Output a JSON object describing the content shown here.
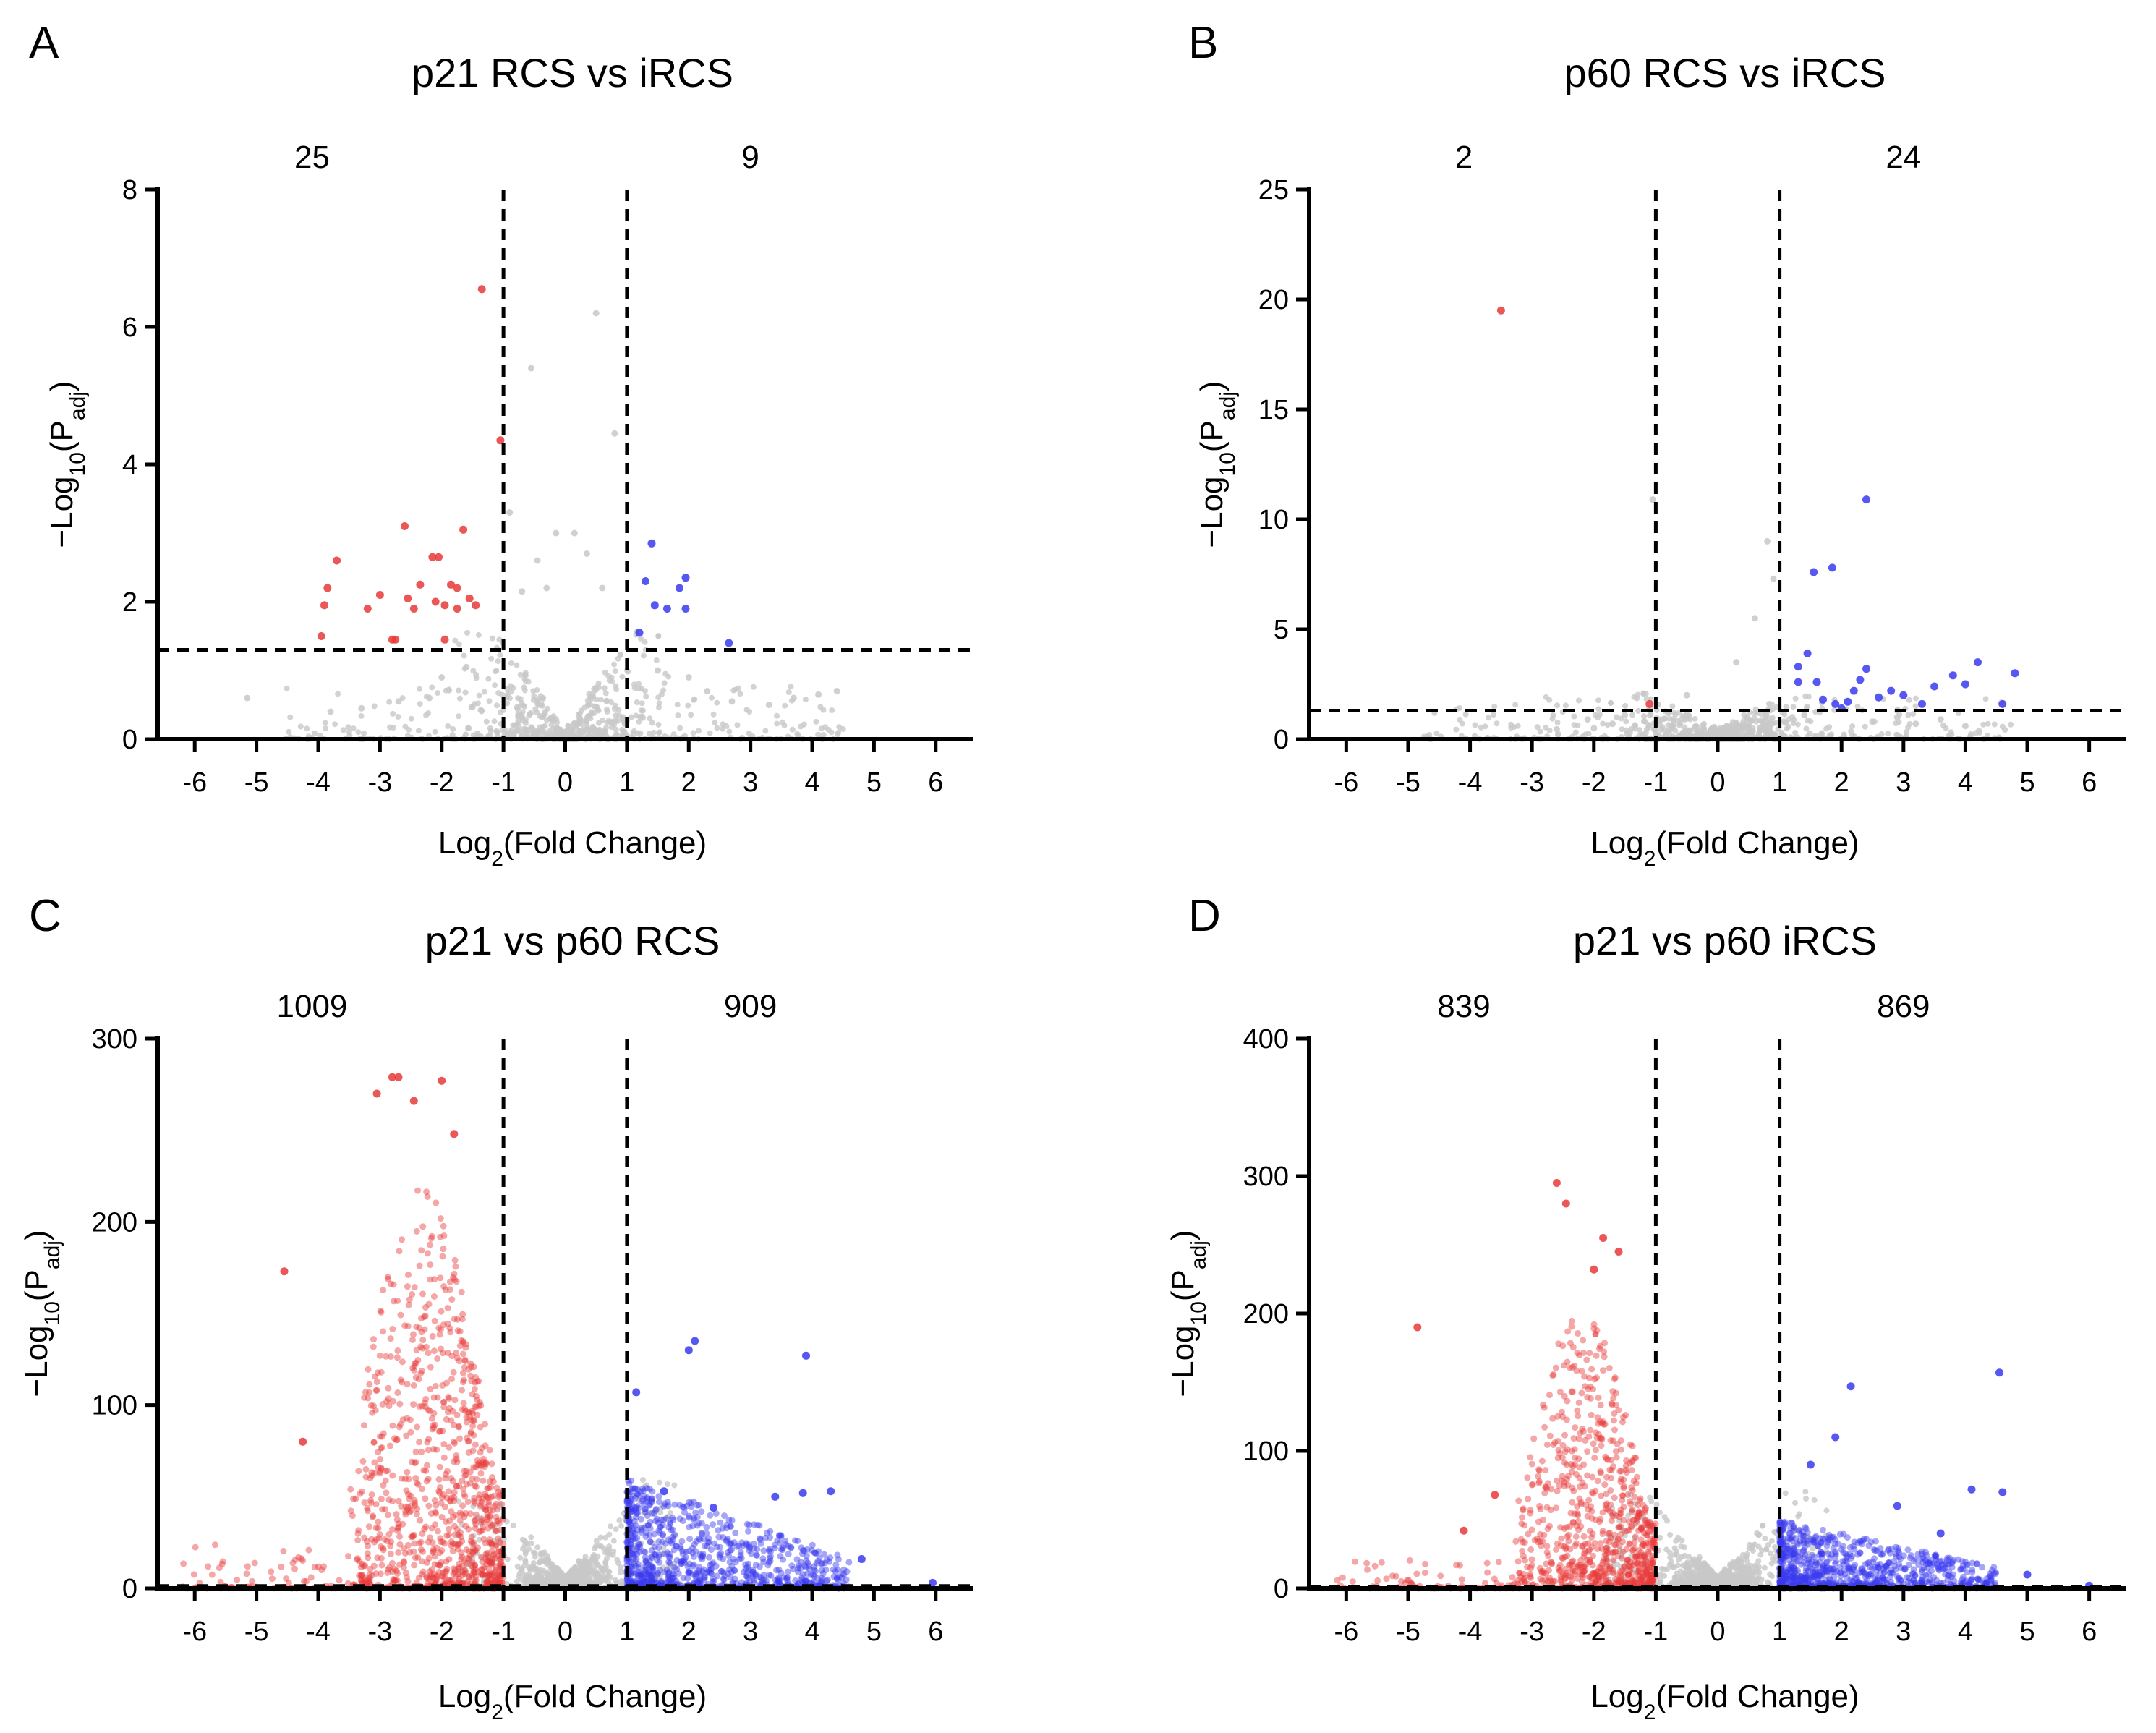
{
  "colors": {
    "up": "#e83a3a",
    "down": "#3a3af0",
    "ns": "#c8c8c8",
    "axis": "#000000"
  },
  "chart_data": [
    {
      "id": "A",
      "type": "scatter",
      "panel_label": "A",
      "title": "p21 RCS vs iRCS",
      "xlabel_main": "Log",
      "xlabel_sub": "2",
      "xlabel_rest": "(Fold  Change)",
      "ylabel_main": "−Log",
      "ylabel_sub1": "10",
      "ylabel_mid": "(P",
      "ylabel_sub2": "adj",
      "ylabel_end": ")",
      "xlim": [
        -6.6,
        6.6
      ],
      "ylim": [
        0,
        8
      ],
      "xticks": [
        -6,
        -5,
        -4,
        -3,
        -2,
        -1,
        0,
        1,
        2,
        3,
        4,
        5,
        6
      ],
      "xtick_labels": [
        "-6",
        "-5",
        "-4",
        "-3",
        "-2",
        "-1",
        "0",
        "1",
        "2",
        "3",
        "4",
        "5",
        "6"
      ],
      "yticks": [
        0,
        2,
        4,
        6,
        8
      ],
      "ytick_labels": [
        "0",
        "2",
        "4",
        "6",
        "8"
      ],
      "fc_threshold": [
        -1,
        1
      ],
      "p_threshold": 1.3,
      "left_count": "25",
      "right_count": "9",
      "highlighted_up": [
        [
          -1.35,
          6.55
        ],
        [
          -1.05,
          4.35
        ],
        [
          -3.7,
          2.6
        ],
        [
          -3.85,
          2.2
        ],
        [
          -3.9,
          1.95
        ],
        [
          -3.2,
          1.9
        ],
        [
          -3.0,
          2.1
        ],
        [
          -2.6,
          3.1
        ],
        [
          -2.55,
          2.05
        ],
        [
          -2.35,
          2.25
        ],
        [
          -2.15,
          2.65
        ],
        [
          -2.05,
          2.65
        ],
        [
          -2.1,
          2.0
        ],
        [
          -1.95,
          1.95
        ],
        [
          -1.85,
          2.25
        ],
        [
          -1.75,
          2.2
        ],
        [
          -1.65,
          3.05
        ],
        [
          -1.55,
          2.05
        ],
        [
          -1.45,
          1.95
        ],
        [
          -1.75,
          1.9
        ],
        [
          -2.45,
          1.9
        ],
        [
          -2.8,
          1.45
        ],
        [
          -2.75,
          1.45
        ],
        [
          -1.95,
          1.45
        ],
        [
          -3.95,
          1.5
        ]
      ],
      "highlighted_down": [
        [
          1.4,
          2.85
        ],
        [
          1.45,
          1.95
        ],
        [
          1.65,
          1.9
        ],
        [
          1.85,
          2.2
        ],
        [
          1.95,
          2.35
        ],
        [
          1.95,
          1.9
        ],
        [
          1.3,
          2.3
        ],
        [
          1.2,
          1.55
        ],
        [
          2.65,
          1.4
        ]
      ],
      "ns_points": [
        [
          0.5,
          6.2
        ],
        [
          -0.55,
          5.4
        ],
        [
          0.8,
          4.45
        ],
        [
          -0.9,
          3.3
        ],
        [
          -0.15,
          3.0
        ],
        [
          0.15,
          3.0
        ],
        [
          0.35,
          2.7
        ],
        [
          -0.45,
          2.6
        ],
        [
          0.6,
          2.2
        ],
        [
          -0.7,
          2.15
        ],
        [
          -0.3,
          2.2
        ],
        [
          -5.15,
          0.6
        ],
        [
          4.4,
          0.7
        ],
        [
          4.1,
          0.65
        ],
        [
          3.7,
          0.6
        ],
        [
          3.3,
          0.5
        ],
        [
          -3.8,
          0.4
        ],
        [
          -3.3,
          0.45
        ],
        [
          -2.7,
          0.55
        ],
        [
          -2.2,
          0.6
        ],
        [
          2.3,
          0.7
        ],
        [
          2.7,
          0.55
        ],
        [
          -1.6,
          1.05
        ],
        [
          1.5,
          1.0
        ],
        [
          2.0,
          0.9
        ],
        [
          -2.0,
          0.9
        ]
      ],
      "ns_cloud": {
        "spread": 2.4,
        "height": 1.4,
        "count": 700,
        "tail_height": 2.2
      }
    },
    {
      "id": "B",
      "type": "scatter",
      "panel_label": "B",
      "title": "p60 RCS vs iRCS",
      "xlabel_main": "Log",
      "xlabel_sub": "2",
      "xlabel_rest": "(Fold  Change)",
      "ylabel_main": "−Log",
      "ylabel_sub1": "10",
      "ylabel_mid": "(P",
      "ylabel_sub2": "adj",
      "ylabel_end": ")",
      "xlim": [
        -6.6,
        6.6
      ],
      "ylim": [
        0,
        25
      ],
      "xticks": [
        -6,
        -5,
        -4,
        -3,
        -2,
        -1,
        0,
        1,
        2,
        3,
        4,
        5,
        6
      ],
      "xtick_labels": [
        "-6",
        "-5",
        "-4",
        "-3",
        "-2",
        "-1",
        "0",
        "1",
        "2",
        "3",
        "4",
        "5",
        "6"
      ],
      "yticks": [
        0,
        5,
        10,
        15,
        20,
        25
      ],
      "ytick_labels": [
        "0",
        "5",
        "10",
        "15",
        "20",
        "25"
      ],
      "fc_threshold": [
        -1,
        1
      ],
      "p_threshold": 1.3,
      "left_count": "2",
      "right_count": "24",
      "highlighted_up": [
        [
          -3.5,
          19.5
        ],
        [
          -1.1,
          1.6
        ]
      ],
      "highlighted_down": [
        [
          2.4,
          10.9
        ],
        [
          1.55,
          7.6
        ],
        [
          1.85,
          7.8
        ],
        [
          1.3,
          3.3
        ],
        [
          1.45,
          3.9
        ],
        [
          1.3,
          2.6
        ],
        [
          1.6,
          2.6
        ],
        [
          1.7,
          1.8
        ],
        [
          1.9,
          1.6
        ],
        [
          2.0,
          1.4
        ],
        [
          2.1,
          1.7
        ],
        [
          2.2,
          2.2
        ],
        [
          2.3,
          2.7
        ],
        [
          2.4,
          3.2
        ],
        [
          2.6,
          1.9
        ],
        [
          2.8,
          2.2
        ],
        [
          3.0,
          2.0
        ],
        [
          3.3,
          1.6
        ],
        [
          3.5,
          2.4
        ],
        [
          3.8,
          2.9
        ],
        [
          4.0,
          2.5
        ],
        [
          4.2,
          3.5
        ],
        [
          4.8,
          3.0
        ],
        [
          4.6,
          1.6
        ]
      ],
      "ns_points": [
        [
          0.8,
          9.0
        ],
        [
          0.9,
          7.3
        ],
        [
          -1.05,
          10.9
        ],
        [
          0.6,
          5.5
        ],
        [
          0.3,
          3.5
        ],
        [
          -0.5,
          2.0
        ],
        [
          -1.7,
          0.7
        ],
        [
          -2.0,
          0.5
        ],
        [
          -2.6,
          0.45
        ],
        [
          2.5,
          0.8
        ],
        [
          3.2,
          0.7
        ],
        [
          4.0,
          0.6
        ],
        [
          -2.1,
          0.9
        ],
        [
          -1.5,
          1.1
        ],
        [
          1.4,
          1.1
        ],
        [
          2.9,
          1.0
        ],
        [
          3.6,
          0.9
        ]
      ],
      "ns_cloud": {
        "spread": 2.5,
        "height": 1.6,
        "count": 700,
        "tail_height": 5.5
      }
    },
    {
      "id": "C",
      "type": "scatter",
      "panel_label": "C",
      "title": "p21 vs p60 RCS",
      "xlabel_main": "Log",
      "xlabel_sub": "2",
      "xlabel_rest": "(Fold  Change)",
      "ylabel_main": "−Log",
      "ylabel_sub1": "10",
      "ylabel_mid": "(P",
      "ylabel_sub2": "adj",
      "ylabel_end": ")",
      "xlim": [
        -6.6,
        6.6
      ],
      "ylim": [
        0,
        300
      ],
      "xticks": [
        -6,
        -5,
        -4,
        -3,
        -2,
        -1,
        0,
        1,
        2,
        3,
        4,
        5,
        6
      ],
      "xtick_labels": [
        "-6",
        "-5",
        "-4",
        "-3",
        "-2",
        "-1",
        "0",
        "1",
        "2",
        "3",
        "4",
        "5",
        "6"
      ],
      "yticks": [
        0,
        100,
        200,
        300
      ],
      "ytick_labels": [
        "0",
        "100",
        "200",
        "300"
      ],
      "fc_threshold": [
        -1,
        1
      ],
      "p_threshold": 1.3,
      "left_count": "1009",
      "right_count": "909",
      "highlighted_up": [
        [
          -2.8,
          279
        ],
        [
          -2.7,
          279
        ],
        [
          -2.0,
          277
        ],
        [
          -3.05,
          270
        ],
        [
          -2.45,
          266
        ],
        [
          -4.55,
          173
        ],
        [
          -4.25,
          80
        ],
        [
          -1.8,
          248
        ]
      ],
      "highlighted_down": [
        [
          2.1,
          135
        ],
        [
          2.0,
          130
        ],
        [
          3.9,
          127
        ],
        [
          1.15,
          107
        ],
        [
          1.6,
          53
        ],
        [
          2.4,
          44
        ],
        [
          3.85,
          52
        ],
        [
          3.4,
          50
        ],
        [
          4.3,
          53
        ],
        [
          4.8,
          16
        ],
        [
          5.95,
          3
        ]
      ],
      "ns_points": [],
      "up_cloud": {
        "xmin": -3.5,
        "xmax": -1.0,
        "count": 1000,
        "peak": 220
      },
      "down_cloud": {
        "xmin": 1.0,
        "xmax": 4.6,
        "count": 900,
        "peak": 60
      },
      "ns_cloud": {
        "spread": 1.05,
        "height": 60,
        "count": 900,
        "tail_height": 8
      }
    },
    {
      "id": "D",
      "type": "scatter",
      "panel_label": "D",
      "title": "p21 vs p60 iRCS",
      "xlabel_main": "Log",
      "xlabel_sub": "2",
      "xlabel_rest": "(Fold  Change)",
      "ylabel_main": "−Log",
      "ylabel_sub1": "10",
      "ylabel_mid": "(P",
      "ylabel_sub2": "adj",
      "ylabel_end": ")",
      "xlim": [
        -6.6,
        6.6
      ],
      "ylim": [
        0,
        400
      ],
      "xticks": [
        -6,
        -5,
        -4,
        -3,
        -2,
        -1,
        0,
        1,
        2,
        3,
        4,
        5,
        6
      ],
      "xtick_labels": [
        "-6",
        "-5",
        "-4",
        "-3",
        "-2",
        "-1",
        "0",
        "1",
        "2",
        "3",
        "4",
        "5",
        "6"
      ],
      "yticks": [
        0,
        100,
        200,
        300,
        400
      ],
      "ytick_labels": [
        "0",
        "100",
        "200",
        "300",
        "400"
      ],
      "fc_threshold": [
        -1,
        1
      ],
      "p_threshold": 1.3,
      "left_count": "839",
      "right_count": "869",
      "highlighted_up": [
        [
          -2.6,
          295
        ],
        [
          -2.45,
          280
        ],
        [
          -1.85,
          255
        ],
        [
          -1.6,
          245
        ],
        [
          -4.85,
          190
        ],
        [
          -3.6,
          68
        ],
        [
          -4.1,
          42
        ],
        [
          -2.0,
          232
        ]
      ],
      "highlighted_down": [
        [
          4.55,
          157
        ],
        [
          2.15,
          147
        ],
        [
          1.9,
          110
        ],
        [
          1.5,
          90
        ],
        [
          2.9,
          60
        ],
        [
          4.1,
          72
        ],
        [
          4.6,
          70
        ],
        [
          3.6,
          40
        ],
        [
          5.0,
          10
        ],
        [
          6.0,
          2
        ]
      ],
      "ns_points": [],
      "up_cloud": {
        "xmin": -3.3,
        "xmax": -1.0,
        "count": 840,
        "peak": 200
      },
      "down_cloud": {
        "xmin": 1.0,
        "xmax": 4.5,
        "count": 870,
        "peak": 50
      },
      "ns_cloud": {
        "spread": 1.05,
        "height": 75,
        "count": 900,
        "tail_height": 8
      }
    }
  ]
}
